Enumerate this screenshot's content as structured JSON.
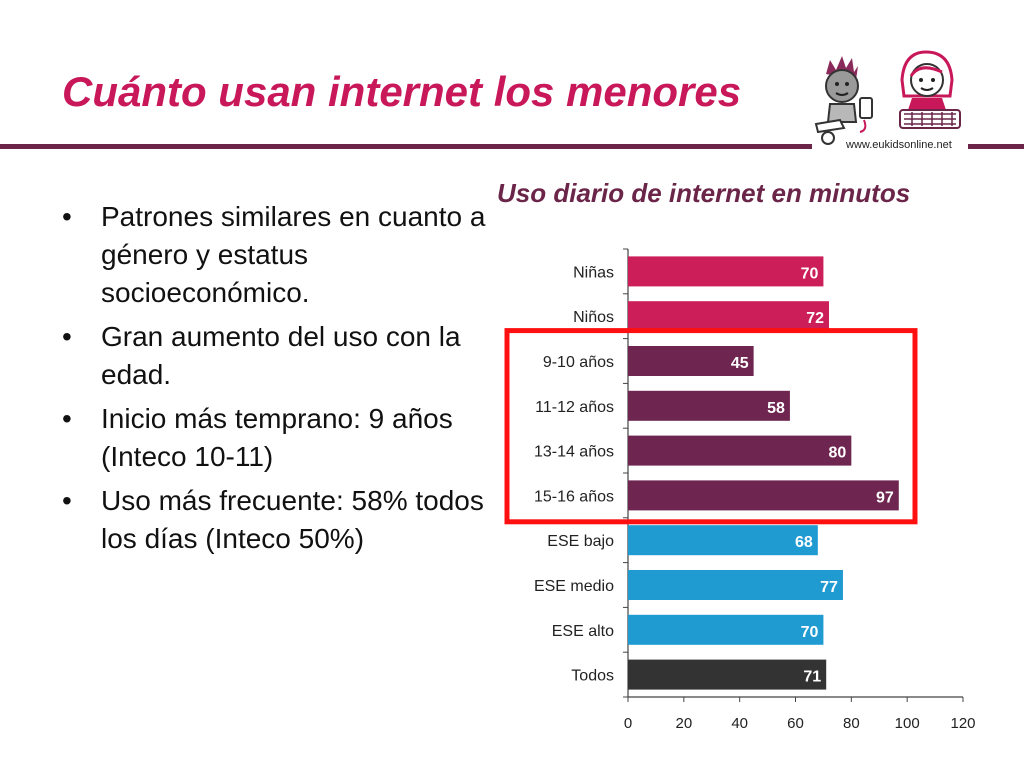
{
  "slide": {
    "title": "Cuánto usan internet los menores",
    "logo_url": "www.eukidsonline.net",
    "bullets": [
      "Patrones similares en cuanto a género y estatus socioeconómico.",
      "Gran aumento del uso con la edad.",
      "Inicio más temprano: 9 años (Inteco 10-11)",
      "Uso más frecuente: 58% todos los días (Inteco 50%)"
    ],
    "bullet_glyph": "•"
  },
  "chart_data": {
    "type": "bar",
    "orientation": "horizontal",
    "title": "Uso diario de internet en minutos",
    "xlabel": "",
    "ylabel": "",
    "xlim": [
      0,
      120
    ],
    "xticks": [
      0,
      20,
      40,
      60,
      80,
      100,
      120
    ],
    "grid": false,
    "legend": "none",
    "categories": [
      "Niñas",
      "Niños",
      "9-10 años",
      "11-12 años",
      "13-14 años",
      "15-16 años",
      "ESE bajo",
      "ESE medio",
      "ESE alto",
      "Todos"
    ],
    "values": [
      70,
      72,
      45,
      58,
      80,
      97,
      68,
      77,
      70,
      71
    ],
    "bar_colors": [
      "#cc1f5a",
      "#cc1f5a",
      "#6e2550",
      "#6e2550",
      "#6e2550",
      "#6e2550",
      "#1f9bd2",
      "#1f9bd2",
      "#1f9bd2",
      "#333333"
    ],
    "highlight": {
      "from_category": "9-10 años",
      "to_category": "15-16 años",
      "color": "#ff1010"
    }
  }
}
